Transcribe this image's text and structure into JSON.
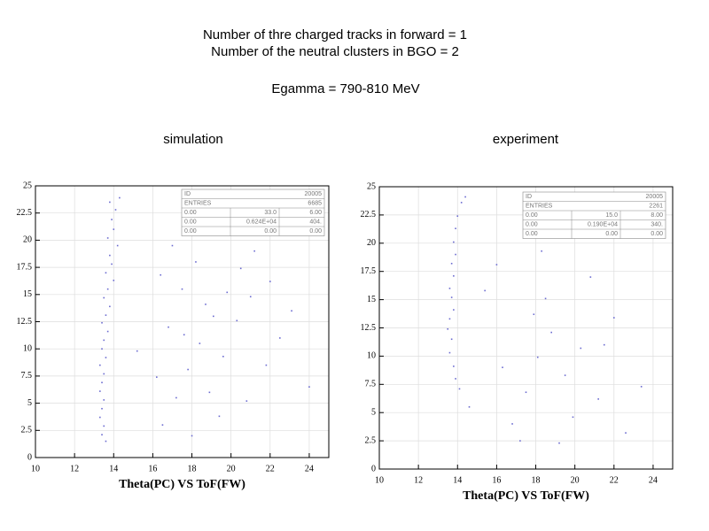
{
  "header": {
    "lines": [
      "Number of thre charged tracks in forward = 1",
      "Number of the neutral clusters in BGO = 2",
      "Egamma = 790-810 MeV"
    ]
  },
  "chart_data": [
    {
      "type": "scatter",
      "title": "simulation",
      "xlabel": "Theta(PC) VS ToF(FW)",
      "color": "#6b6bd0",
      "xlim": [
        10,
        25
      ],
      "ylim": [
        0,
        25
      ],
      "xticks": [
        10,
        12,
        14,
        16,
        18,
        20,
        22,
        24
      ],
      "yticks": [
        0,
        2.5,
        5,
        7.5,
        10,
        12.5,
        15,
        17.5,
        20,
        22.5,
        25
      ],
      "grid": true,
      "stats": {
        "rows": [
          [
            "ID",
            "20005"
          ],
          [
            "ENTRIES",
            "6685"
          ],
          [
            "0.00",
            "33.0",
            "6.00"
          ],
          [
            "0.00",
            "0.624E+04",
            "404."
          ],
          [
            "0.00",
            "0.00",
            "0.00"
          ]
        ]
      },
      "x": [
        13.8,
        14.1,
        13.9,
        14.0,
        13.7,
        14.2,
        13.8,
        13.9,
        13.6,
        14.0,
        13.7,
        13.5,
        13.8,
        13.6,
        13.4,
        13.7,
        13.5,
        13.4,
        13.6,
        13.3,
        13.5,
        13.4,
        13.3,
        13.5,
        13.4,
        13.3,
        13.5,
        13.4,
        13.6,
        14.3,
        16.5,
        17.2,
        17.8,
        18.4,
        19.1,
        19.8,
        20.5,
        21.2,
        16.8,
        17.5,
        18.2,
        18.9,
        19.6,
        20.3,
        21.0,
        21.8,
        22.5,
        16.2,
        17.0,
        18.0,
        19.4,
        20.8,
        22.0,
        23.1,
        17.6,
        18.7,
        20.0,
        16.4,
        15.2,
        24.0
      ],
      "y": [
        23.5,
        22.8,
        21.9,
        21.0,
        20.2,
        19.5,
        18.6,
        17.8,
        17.0,
        16.3,
        15.5,
        14.7,
        13.9,
        13.1,
        12.4,
        11.6,
        10.8,
        10.0,
        9.2,
        8.5,
        7.7,
        6.9,
        6.1,
        5.3,
        4.5,
        3.7,
        2.9,
        2.1,
        1.5,
        23.9,
        3.0,
        5.5,
        8.1,
        10.5,
        13.0,
        15.2,
        17.4,
        19.0,
        12.0,
        15.5,
        18.0,
        6.0,
        9.3,
        12.6,
        14.8,
        8.5,
        11.0,
        7.4,
        19.5,
        2.0,
        3.8,
        5.2,
        16.2,
        13.5,
        11.3,
        14.1,
        20.5,
        16.8,
        9.8,
        6.5
      ]
    },
    {
      "type": "scatter",
      "title": "experiment",
      "xlabel": "Theta(PC) VS ToF(FW)",
      "color": "#6b6bd0",
      "xlim": [
        10,
        25
      ],
      "ylim": [
        0,
        25
      ],
      "xticks": [
        10,
        12,
        14,
        16,
        18,
        20,
        22,
        24
      ],
      "yticks": [
        0,
        2.5,
        5,
        7.5,
        10,
        12.5,
        15,
        17.5,
        20,
        22.5,
        25
      ],
      "grid": true,
      "stats": {
        "rows": [
          [
            "ID",
            "20005"
          ],
          [
            "ENTRIES",
            "2261"
          ],
          [
            "0.00",
            "15.0",
            "8.00"
          ],
          [
            "0.00",
            "0.190E+04",
            "340."
          ],
          [
            "0.00",
            "0.00",
            "0.00"
          ]
        ]
      },
      "x": [
        14.2,
        14.0,
        13.9,
        13.8,
        13.9,
        13.7,
        13.8,
        13.6,
        13.7,
        13.8,
        13.6,
        13.5,
        13.7,
        13.6,
        13.8,
        13.9,
        14.1,
        14.4,
        14.6,
        16.8,
        17.5,
        18.1,
        18.8,
        19.5,
        20.3,
        21.2,
        22.0,
        17.2,
        18.5,
        19.9,
        21.5,
        16.3,
        23.4,
        20.8,
        17.9,
        15.4,
        19.2,
        22.6,
        18.3,
        16.0
      ],
      "y": [
        23.6,
        22.4,
        21.3,
        20.1,
        19.0,
        18.2,
        17.1,
        16.0,
        15.2,
        14.1,
        13.3,
        12.4,
        11.5,
        10.3,
        9.1,
        8.0,
        7.1,
        24.1,
        5.5,
        4.0,
        6.8,
        9.9,
        12.1,
        8.3,
        10.7,
        6.2,
        13.4,
        2.5,
        15.1,
        4.6,
        11.0,
        9.0,
        7.3,
        17.0,
        13.7,
        15.8,
        2.3,
        3.2,
        19.3,
        18.1
      ]
    }
  ]
}
